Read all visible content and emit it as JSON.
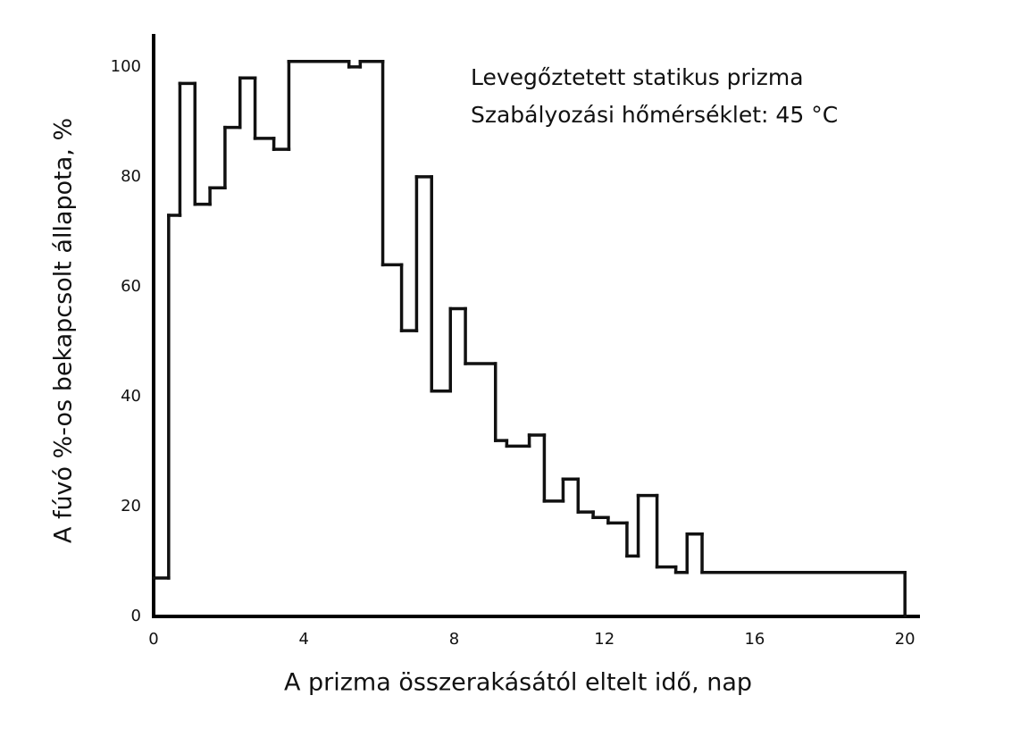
{
  "chart_data": {
    "type": "step",
    "annotations": [
      "Levegőztetett statikus prizma",
      "Szabályozási hőmérséklet: 45 °C"
    ],
    "x_label": "A prizma összerakásától eltelt idő, nap",
    "y_label": "A fúvó %-os bekapcsolt állapota, %",
    "x": [
      0,
      0.4,
      0.7,
      1.1,
      1.5,
      1.9,
      2.3,
      2.7,
      3.2,
      3.6,
      5.2,
      5.5,
      6.1,
      6.6,
      7.0,
      7.4,
      7.9,
      8.3,
      9.1,
      9.4,
      10.0,
      10.4,
      10.9,
      11.3,
      11.7,
      12.1,
      12.6,
      12.9,
      13.4,
      13.9,
      14.2,
      14.6,
      20
    ],
    "values": [
      7,
      73,
      97,
      75,
      78,
      89,
      98,
      87,
      85,
      101,
      100,
      101,
      64,
      52,
      80,
      41,
      56,
      46,
      32,
      31,
      33,
      21,
      25,
      19,
      18,
      17,
      11,
      22,
      9,
      8,
      15,
      8,
      0
    ],
    "color": "#111111",
    "xlim": [
      0,
      20.4
    ],
    "ylim": [
      0,
      106
    ],
    "xticks": [
      0,
      4,
      8,
      12,
      16,
      20
    ],
    "yticks": [
      0,
      20,
      40,
      60,
      80,
      100
    ],
    "grid": false
  }
}
